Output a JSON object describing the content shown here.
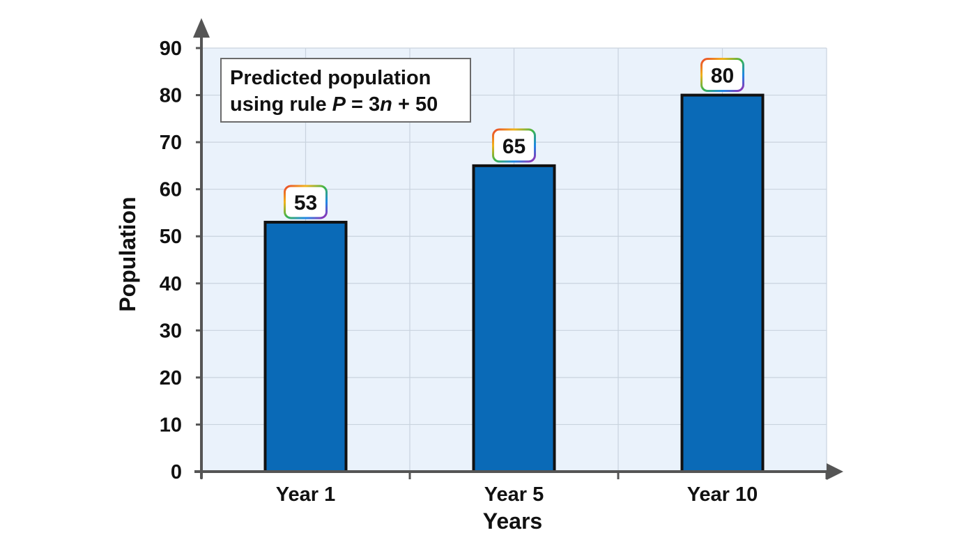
{
  "chart_data": {
    "type": "bar",
    "categories": [
      "Year 1",
      "Year 5",
      "Year 10"
    ],
    "values": [
      53,
      65,
      80
    ],
    "data_labels": [
      "53",
      "65",
      "80"
    ],
    "xlabel": "Years",
    "ylabel": "Population",
    "ylim": [
      0,
      90
    ],
    "yticks": [
      0,
      10,
      20,
      30,
      40,
      50,
      60,
      70,
      80,
      90
    ],
    "ytick_labels": [
      "0",
      "10",
      "20",
      "30",
      "40",
      "50",
      "60",
      "70",
      "80",
      "90"
    ],
    "grid": true,
    "legend": "none",
    "annotation": {
      "line1": "Predicted population",
      "line2_prefix": "using rule ",
      "var_p": "P",
      "eq": " = 3",
      "var_n": "n",
      "suffix": " + 50",
      "placement": "top-left"
    },
    "colors": {
      "bar_fill": "#0a6ab7",
      "bar_stroke": "#111111",
      "plot_bg": "#eaf2fb",
      "grid": "#c9d3de",
      "axis": "#555555"
    }
  }
}
